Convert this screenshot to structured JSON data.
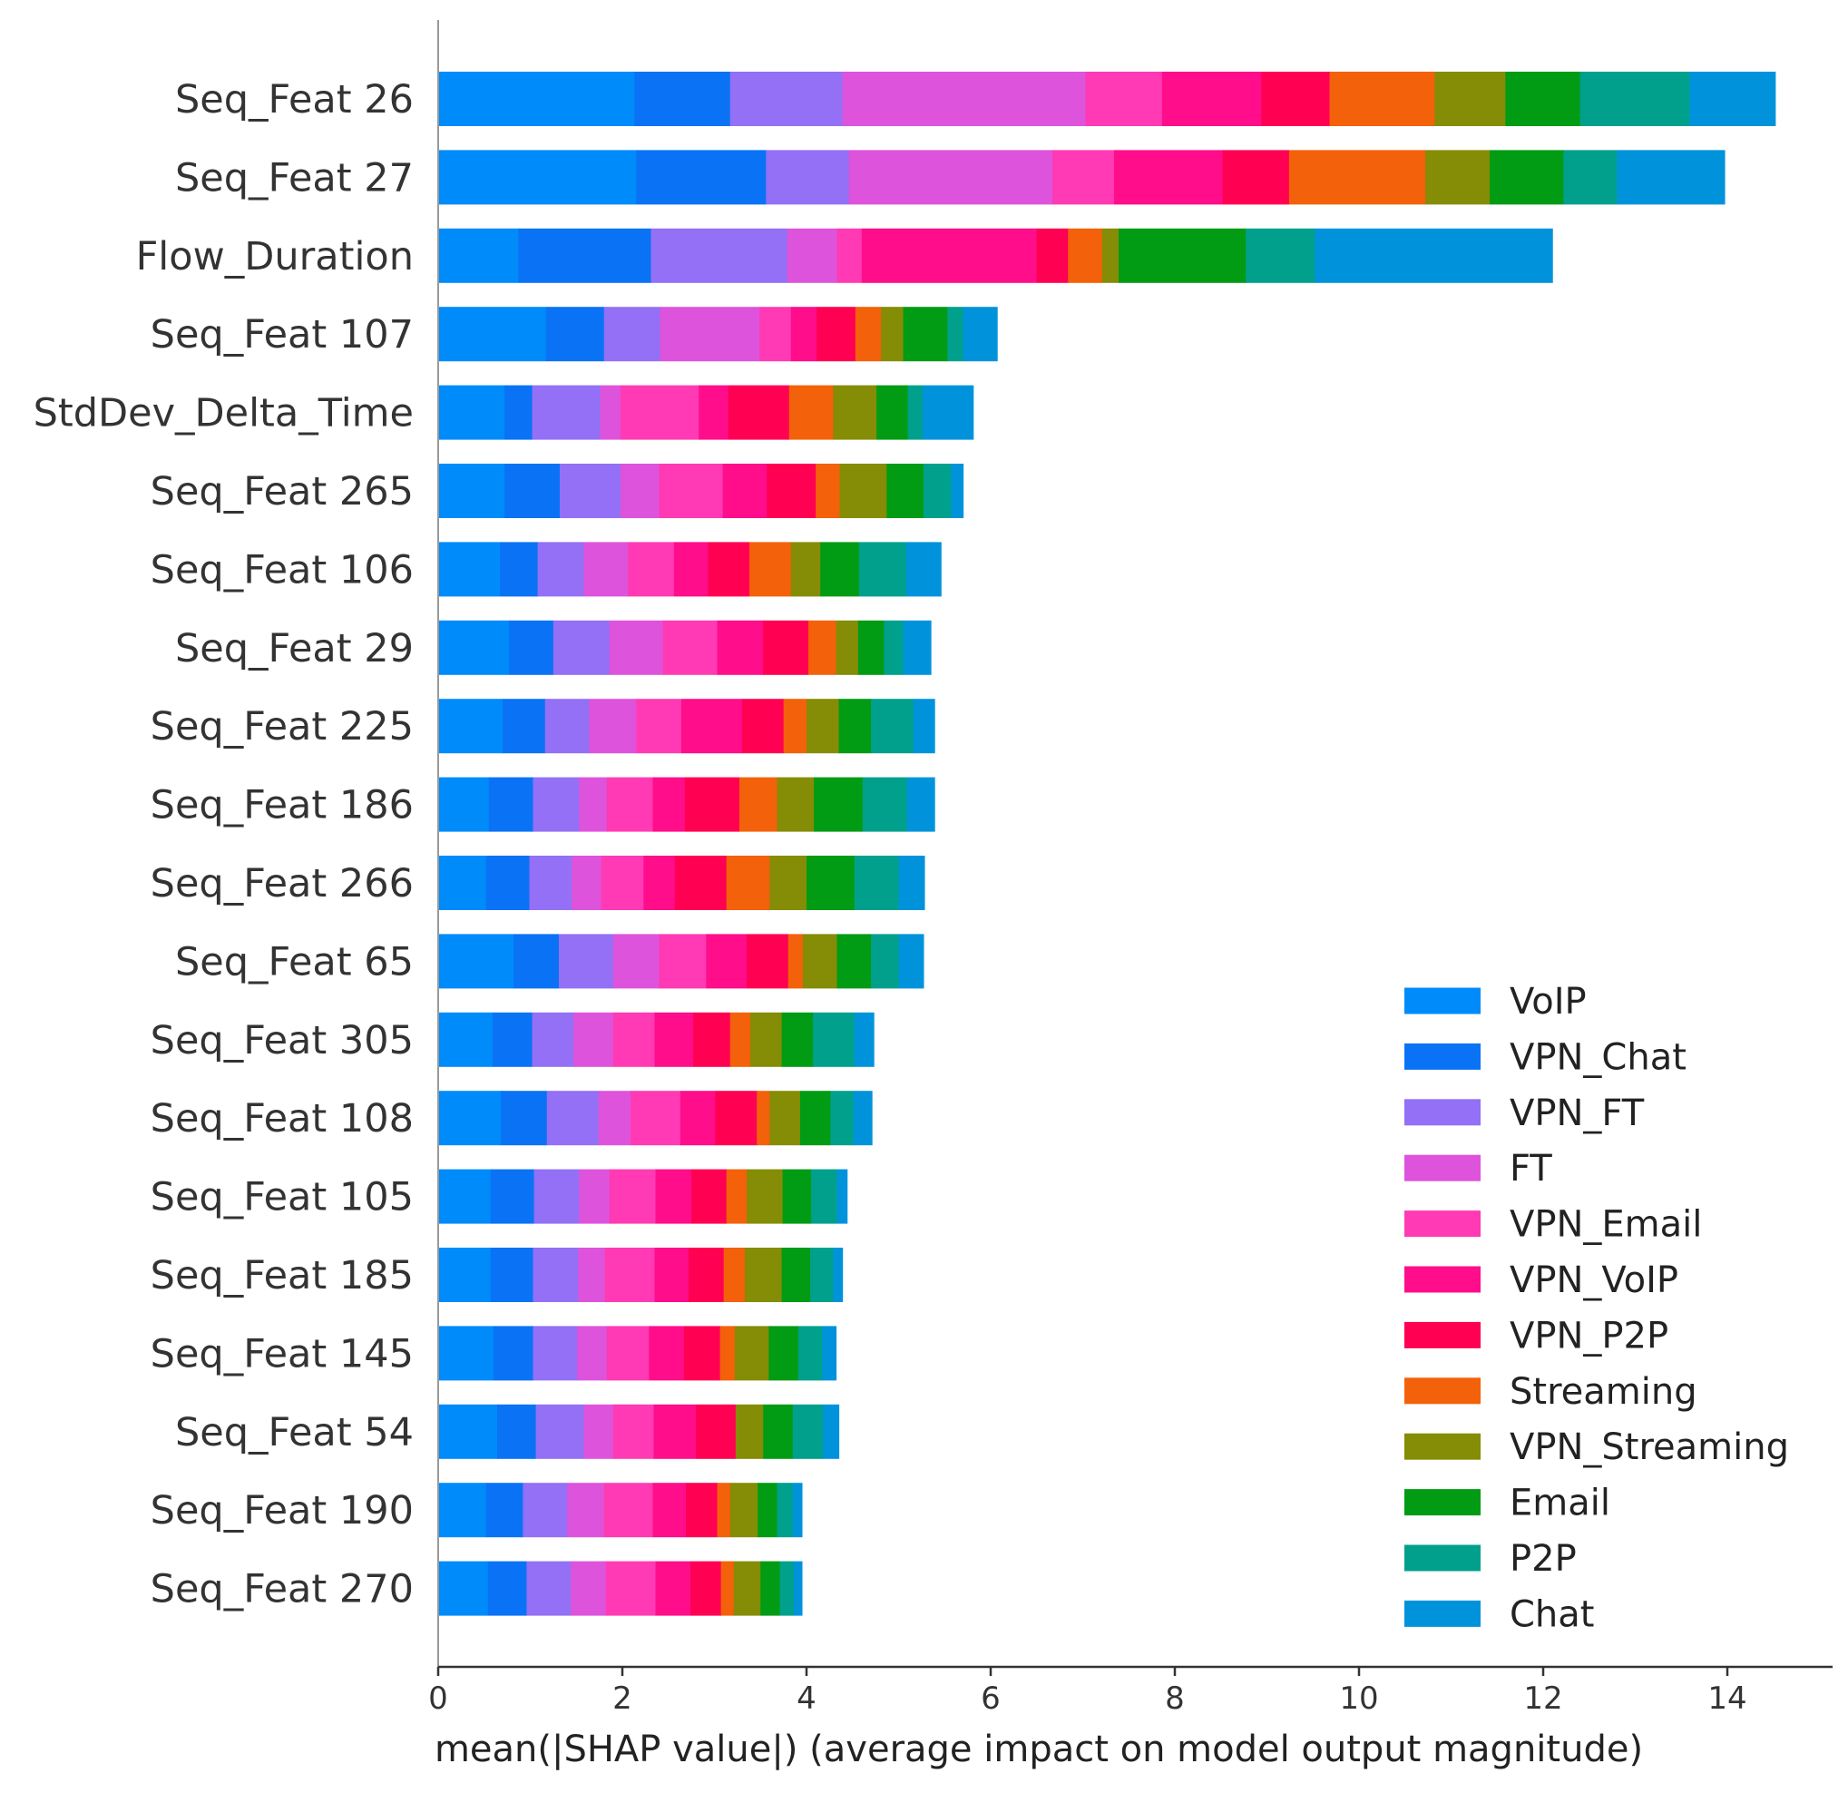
{
  "chart_data": {
    "type": "bar",
    "orientation": "horizontal",
    "stacked": true,
    "xlabel": "mean(|SHAP value|) (average impact on model output magnitude)",
    "xlim": [
      0,
      15.2
    ],
    "xticks": [
      0,
      2,
      4,
      6,
      8,
      10,
      12,
      14
    ],
    "legend_position": "bottom-right",
    "grid": false,
    "categories": [
      "Seq_Feat 26",
      "Seq_Feat 27",
      "Flow_Duration",
      "Seq_Feat 107",
      "StdDev_Delta_Time",
      "Seq_Feat 265",
      "Seq_Feat 106",
      "Seq_Feat 29",
      "Seq_Feat 225",
      "Seq_Feat 186",
      "Seq_Feat 266",
      "Seq_Feat 65",
      "Seq_Feat 305",
      "Seq_Feat 108",
      "Seq_Feat 105",
      "Seq_Feat 185",
      "Seq_Feat 145",
      "Seq_Feat 54",
      "Seq_Feat 190",
      "Seq_Feat 270"
    ],
    "series": [
      {
        "name": "VoIP",
        "color": "#008bfb",
        "values": [
          2.13,
          2.15,
          0.87,
          1.17,
          0.72,
          0.72,
          0.67,
          0.77,
          0.7,
          0.55,
          0.52,
          0.82,
          0.59,
          0.68,
          0.57,
          0.57,
          0.6,
          0.64,
          0.52,
          0.54
        ]
      },
      {
        "name": "VPN_Chat",
        "color": "#0a73f5",
        "values": [
          1.04,
          1.41,
          1.44,
          0.63,
          0.3,
          0.6,
          0.41,
          0.48,
          0.46,
          0.48,
          0.47,
          0.49,
          0.43,
          0.5,
          0.47,
          0.46,
          0.43,
          0.42,
          0.4,
          0.42
        ]
      },
      {
        "name": "VPN_FT",
        "color": "#9370f5",
        "values": [
          1.22,
          0.9,
          1.48,
          0.61,
          0.74,
          0.66,
          0.5,
          0.61,
          0.48,
          0.5,
          0.46,
          0.59,
          0.45,
          0.56,
          0.49,
          0.49,
          0.48,
          0.52,
          0.48,
          0.48
        ]
      },
      {
        "name": "FT",
        "color": "#de53db",
        "values": [
          2.64,
          2.21,
          0.54,
          1.08,
          0.22,
          0.42,
          0.48,
          0.58,
          0.51,
          0.3,
          0.32,
          0.5,
          0.43,
          0.35,
          0.33,
          0.29,
          0.32,
          0.32,
          0.4,
          0.38
        ]
      },
      {
        "name": "VPN_Email",
        "color": "#ff3ab4",
        "values": [
          0.83,
          0.67,
          0.27,
          0.34,
          0.85,
          0.69,
          0.5,
          0.59,
          0.49,
          0.5,
          0.46,
          0.51,
          0.45,
          0.54,
          0.5,
          0.54,
          0.46,
          0.44,
          0.53,
          0.54
        ]
      },
      {
        "name": "VPN_VoIP",
        "color": "#ff0d8a",
        "values": [
          1.08,
          1.18,
          1.9,
          0.28,
          0.32,
          0.48,
          0.37,
          0.5,
          0.66,
          0.35,
          0.34,
          0.44,
          0.42,
          0.38,
          0.39,
          0.37,
          0.38,
          0.46,
          0.36,
          0.38
        ]
      },
      {
        "name": "VPN_P2P",
        "color": "#ff0052",
        "values": [
          0.74,
          0.72,
          0.34,
          0.42,
          0.66,
          0.53,
          0.45,
          0.49,
          0.45,
          0.59,
          0.56,
          0.45,
          0.4,
          0.45,
          0.38,
          0.38,
          0.39,
          0.43,
          0.34,
          0.33
        ]
      },
      {
        "name": "Streaming",
        "color": "#f3610a",
        "values": [
          1.14,
          1.48,
          0.37,
          0.28,
          0.48,
          0.26,
          0.45,
          0.3,
          0.25,
          0.41,
          0.47,
          0.16,
          0.22,
          0.14,
          0.22,
          0.23,
          0.16,
          0.0,
          0.14,
          0.14
        ]
      },
      {
        "name": "VPN_Streaming",
        "color": "#858c05",
        "values": [
          0.77,
          0.7,
          0.18,
          0.24,
          0.47,
          0.51,
          0.32,
          0.24,
          0.35,
          0.4,
          0.4,
          0.37,
          0.34,
          0.33,
          0.39,
          0.4,
          0.37,
          0.3,
          0.3,
          0.29
        ]
      },
      {
        "name": "Email",
        "color": "#029b14",
        "values": [
          0.81,
          0.8,
          1.38,
          0.48,
          0.34,
          0.4,
          0.42,
          0.28,
          0.35,
          0.53,
          0.52,
          0.37,
          0.34,
          0.33,
          0.31,
          0.31,
          0.32,
          0.32,
          0.21,
          0.21
        ]
      },
      {
        "name": "P2P",
        "color": "#00a08c",
        "values": [
          1.19,
          0.58,
          0.75,
          0.17,
          0.16,
          0.3,
          0.51,
          0.21,
          0.46,
          0.48,
          0.48,
          0.3,
          0.45,
          0.25,
          0.28,
          0.25,
          0.26,
          0.33,
          0.17,
          0.15
        ]
      },
      {
        "name": "Chat",
        "color": "#0093db",
        "values": [
          0.93,
          1.17,
          2.58,
          0.37,
          0.55,
          0.13,
          0.38,
          0.3,
          0.23,
          0.3,
          0.28,
          0.27,
          0.21,
          0.2,
          0.11,
          0.1,
          0.15,
          0.17,
          0.1,
          0.09
        ]
      }
    ]
  }
}
